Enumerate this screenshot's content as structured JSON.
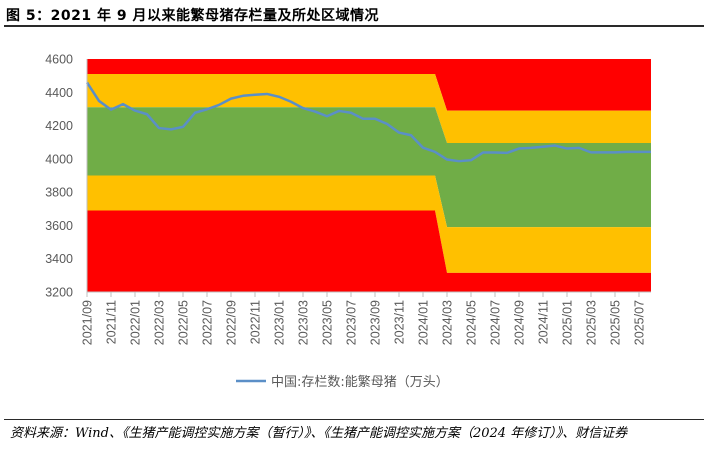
{
  "figure": {
    "title": "图 5：2021 年 9 月以来能繁母猪存栏量及所处区域情况",
    "source": "资料来源：Wind、《生猪产能调控实施方案（暂行）》、《生猪产能调控实施方案（2024 年修订）》、财信证券"
  },
  "colors": {
    "red": "#ff0000",
    "yellow": "#ffc000",
    "green": "#70ad47",
    "line": "#5b8fc7",
    "axis": "#bfbfbf",
    "text": "#595959"
  },
  "chart_data": {
    "type": "line",
    "title": "",
    "xlabel": "",
    "ylabel": "",
    "ylim": [
      3200,
      4600
    ],
    "yticks": [
      3200,
      3400,
      3600,
      3800,
      4000,
      4200,
      4400,
      4600
    ],
    "grid": false,
    "legend_position": "bottom",
    "x_tick_labels": [
      "2021/09",
      "2021/11",
      "2022/01",
      "2022/03",
      "2022/05",
      "2022/07",
      "2022/09",
      "2022/11",
      "2023/01",
      "2023/03",
      "2023/05",
      "2023/07",
      "2023/09",
      "2023/11",
      "2024/01",
      "2024/03",
      "2024/05",
      "2024/07",
      "2024/09",
      "2024/11",
      "2025/01",
      "2025/03",
      "2025/05",
      "2025/07"
    ],
    "x": [
      "2021/09",
      "2021/10",
      "2021/11",
      "2021/12",
      "2022/01",
      "2022/02",
      "2022/03",
      "2022/04",
      "2022/05",
      "2022/06",
      "2022/07",
      "2022/08",
      "2022/09",
      "2022/10",
      "2022/11",
      "2022/12",
      "2023/01",
      "2023/02",
      "2023/03",
      "2023/04",
      "2023/05",
      "2023/06",
      "2023/07",
      "2023/08",
      "2023/09",
      "2023/10",
      "2023/11",
      "2023/12",
      "2024/01",
      "2024/02",
      "2024/03",
      "2024/04",
      "2024/05",
      "2024/06",
      "2024/07",
      "2024/08",
      "2024/09",
      "2024/10",
      "2024/11",
      "2024/12",
      "2025/01",
      "2025/02",
      "2025/03",
      "2025/04",
      "2025/05",
      "2025/06",
      "2025/07",
      "2025/08"
    ],
    "series": [
      {
        "name": "中国:存栏数:能繁母猪（万头）",
        "values": [
          4459,
          4348,
          4296,
          4329,
          4290,
          4268,
          4185,
          4177,
          4192,
          4277,
          4298,
          4324,
          4362,
          4379,
          4385,
          4390,
          4373,
          4343,
          4305,
          4284,
          4256,
          4288,
          4277,
          4241,
          4241,
          4210,
          4158,
          4142,
          4067,
          4042,
          3996,
          3986,
          3992,
          4038,
          4038,
          4036,
          4062,
          4066,
          4073,
          4080,
          4062,
          4066,
          4039,
          4039,
          4039,
          4042,
          4042,
          4042
        ]
      }
    ],
    "zones": [
      {
        "color": "red",
        "upper": [
          4600,
          4600,
          4600,
          4600,
          4600,
          4600,
          4600,
          4600,
          4600,
          4600,
          4600,
          4600,
          4600,
          4600,
          4600,
          4600,
          4600,
          4600,
          4600,
          4600,
          4600,
          4600,
          4600,
          4600,
          4600,
          4600,
          4600,
          4600,
          4600,
          4600,
          4600,
          4600,
          4600,
          4600,
          4600,
          4600,
          4600,
          4600,
          4600,
          4600,
          4600,
          4600,
          4600,
          4600,
          4600,
          4600,
          4600,
          4600
        ],
        "lower": [
          4510,
          4510,
          4510,
          4510,
          4510,
          4510,
          4510,
          4510,
          4510,
          4510,
          4510,
          4510,
          4510,
          4510,
          4510,
          4510,
          4510,
          4510,
          4510,
          4510,
          4510,
          4510,
          4510,
          4510,
          4510,
          4510,
          4510,
          4510,
          4510,
          4510,
          4290,
          4290,
          4290,
          4290,
          4290,
          4290,
          4290,
          4290,
          4290,
          4290,
          4290,
          4290,
          4290,
          4290,
          4290,
          4290,
          4290,
          4290
        ]
      },
      {
        "color": "yellow",
        "upper": [
          4510,
          4510,
          4510,
          4510,
          4510,
          4510,
          4510,
          4510,
          4510,
          4510,
          4510,
          4510,
          4510,
          4510,
          4510,
          4510,
          4510,
          4510,
          4510,
          4510,
          4510,
          4510,
          4510,
          4510,
          4510,
          4510,
          4510,
          4510,
          4510,
          4510,
          4290,
          4290,
          4290,
          4290,
          4290,
          4290,
          4290,
          4290,
          4290,
          4290,
          4290,
          4290,
          4290,
          4290,
          4290,
          4290,
          4290,
          4290
        ],
        "lower": [
          4310,
          4310,
          4310,
          4310,
          4310,
          4310,
          4310,
          4310,
          4310,
          4310,
          4310,
          4310,
          4310,
          4310,
          4310,
          4310,
          4310,
          4310,
          4310,
          4310,
          4310,
          4310,
          4310,
          4310,
          4310,
          4310,
          4310,
          4310,
          4310,
          4310,
          4095,
          4095,
          4095,
          4095,
          4095,
          4095,
          4095,
          4095,
          4095,
          4095,
          4095,
          4095,
          4095,
          4095,
          4095,
          4095,
          4095,
          4095
        ]
      },
      {
        "color": "green",
        "upper": [
          4310,
          4310,
          4310,
          4310,
          4310,
          4310,
          4310,
          4310,
          4310,
          4310,
          4310,
          4310,
          4310,
          4310,
          4310,
          4310,
          4310,
          4310,
          4310,
          4310,
          4310,
          4310,
          4310,
          4310,
          4310,
          4310,
          4310,
          4310,
          4310,
          4310,
          4095,
          4095,
          4095,
          4095,
          4095,
          4095,
          4095,
          4095,
          4095,
          4095,
          4095,
          4095,
          4095,
          4095,
          4095,
          4095,
          4095,
          4095
        ],
        "lower": [
          3900,
          3900,
          3900,
          3900,
          3900,
          3900,
          3900,
          3900,
          3900,
          3900,
          3900,
          3900,
          3900,
          3900,
          3900,
          3900,
          3900,
          3900,
          3900,
          3900,
          3900,
          3900,
          3900,
          3900,
          3900,
          3900,
          3900,
          3900,
          3900,
          3900,
          3590,
          3590,
          3590,
          3590,
          3590,
          3590,
          3590,
          3590,
          3590,
          3590,
          3590,
          3590,
          3590,
          3590,
          3590,
          3590,
          3590,
          3590
        ]
      },
      {
        "color": "yellow",
        "upper": [
          3900,
          3900,
          3900,
          3900,
          3900,
          3900,
          3900,
          3900,
          3900,
          3900,
          3900,
          3900,
          3900,
          3900,
          3900,
          3900,
          3900,
          3900,
          3900,
          3900,
          3900,
          3900,
          3900,
          3900,
          3900,
          3900,
          3900,
          3900,
          3900,
          3900,
          3590,
          3590,
          3590,
          3590,
          3590,
          3590,
          3590,
          3590,
          3590,
          3590,
          3590,
          3590,
          3590,
          3590,
          3590,
          3590,
          3590,
          3590
        ],
        "lower": [
          3690,
          3690,
          3690,
          3690,
          3690,
          3690,
          3690,
          3690,
          3690,
          3690,
          3690,
          3690,
          3690,
          3690,
          3690,
          3690,
          3690,
          3690,
          3690,
          3690,
          3690,
          3690,
          3690,
          3690,
          3690,
          3690,
          3690,
          3690,
          3690,
          3690,
          3315,
          3315,
          3315,
          3315,
          3315,
          3315,
          3315,
          3315,
          3315,
          3315,
          3315,
          3315,
          3315,
          3315,
          3315,
          3315,
          3315,
          3315
        ]
      },
      {
        "color": "red",
        "upper": [
          3690,
          3690,
          3690,
          3690,
          3690,
          3690,
          3690,
          3690,
          3690,
          3690,
          3690,
          3690,
          3690,
          3690,
          3690,
          3690,
          3690,
          3690,
          3690,
          3690,
          3690,
          3690,
          3690,
          3690,
          3690,
          3690,
          3690,
          3690,
          3690,
          3690,
          3315,
          3315,
          3315,
          3315,
          3315,
          3315,
          3315,
          3315,
          3315,
          3315,
          3315,
          3315,
          3315,
          3315,
          3315,
          3315,
          3315,
          3315
        ],
        "lower": [
          3200,
          3200,
          3200,
          3200,
          3200,
          3200,
          3200,
          3200,
          3200,
          3200,
          3200,
          3200,
          3200,
          3200,
          3200,
          3200,
          3200,
          3200,
          3200,
          3200,
          3200,
          3200,
          3200,
          3200,
          3200,
          3200,
          3200,
          3200,
          3200,
          3200,
          3200,
          3200,
          3200,
          3200,
          3200,
          3200,
          3200,
          3200,
          3200,
          3200,
          3200,
          3200,
          3200,
          3200,
          3200,
          3200,
          3200,
          3200
        ]
      }
    ]
  }
}
